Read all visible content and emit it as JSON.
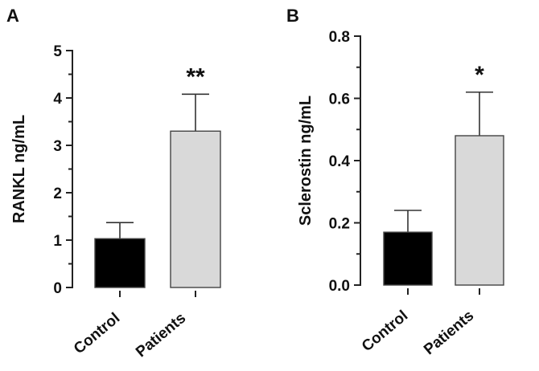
{
  "chart_data": [
    {
      "panel": "A",
      "type": "bar",
      "categories": [
        "Control",
        "Patients"
      ],
      "values": [
        1.03,
        3.3
      ],
      "error_bars": [
        0.34,
        0.78
      ],
      "annotations": [
        "",
        "**"
      ],
      "ylabel": "RANKL ng/mL",
      "xlabel": "",
      "ylim": [
        0,
        5
      ],
      "yticks": [
        "0",
        "1",
        "2",
        "3",
        "4",
        "5"
      ],
      "colors": [
        "#000000",
        "#d9d9d9"
      ],
      "grid": false
    },
    {
      "panel": "B",
      "type": "bar",
      "categories": [
        "Control",
        "Patients"
      ],
      "values": [
        0.17,
        0.48
      ],
      "error_bars": [
        0.07,
        0.14
      ],
      "annotations": [
        "",
        "*"
      ],
      "ylabel": "Sclerostin ng/mL",
      "xlabel": "",
      "ylim": [
        0,
        0.8
      ],
      "yticks": [
        "0.0",
        "0.2",
        "0.4",
        "0.6",
        "0.8"
      ],
      "colors": [
        "#000000",
        "#d9d9d9"
      ],
      "grid": false
    }
  ]
}
